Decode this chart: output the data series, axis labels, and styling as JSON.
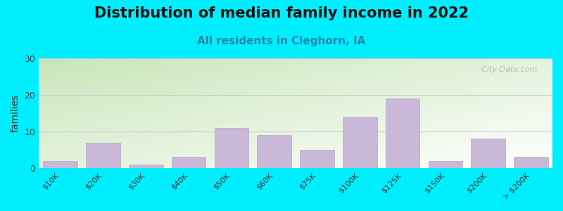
{
  "title": "Distribution of median family income in 2022",
  "subtitle": "All residents in Cleghorn, IA",
  "categories": [
    "$10K",
    "$20K",
    "$30K",
    "$40K",
    "$50K",
    "$60K",
    "$75K",
    "$100K",
    "$125K",
    "$150K",
    "$200K",
    "> $200K"
  ],
  "values": [
    2,
    7,
    1,
    3,
    11,
    9,
    5,
    14,
    19,
    2,
    8,
    3
  ],
  "bar_color": "#c9b8d8",
  "bar_edge_color": "#b8a8cc",
  "background_color": "#00eeff",
  "ylabel": "families",
  "ylim": [
    0,
    30
  ],
  "yticks": [
    0,
    10,
    20,
    30
  ],
  "grid_color": "#cccccc",
  "title_fontsize": 15,
  "subtitle_fontsize": 11,
  "tick_fontsize": 8,
  "ylabel_fontsize": 10,
  "watermark": "  City-Data.com"
}
